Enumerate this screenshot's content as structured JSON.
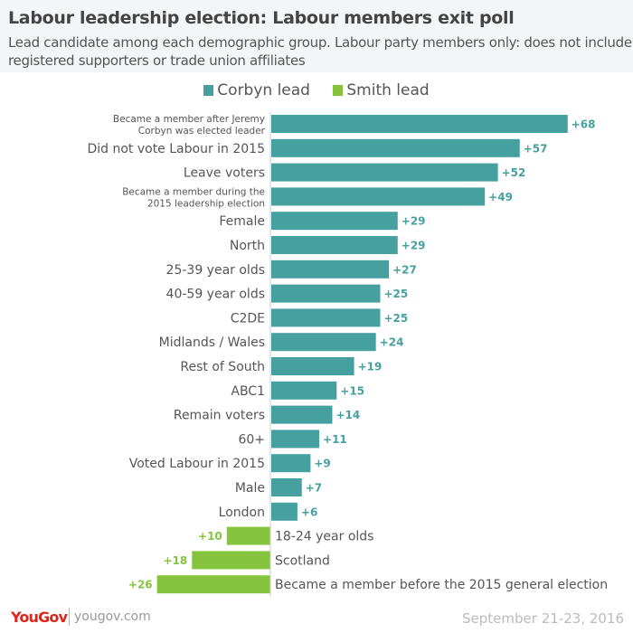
{
  "header": {
    "title": "Labour leadership election: Labour members exit poll",
    "subtitle": "Lead candidate among each demographic group. Labour party members only: does not include registered supporters or trade union affiliates"
  },
  "legend": [
    {
      "label": "Corbyn lead",
      "color": "#47a0a0"
    },
    {
      "label": "Smith lead",
      "color": "#86c440"
    }
  ],
  "chart_data": {
    "type": "bar",
    "orientation": "horizontal-diverging",
    "title": "Labour leadership election: Labour members exit poll",
    "categories": [
      "Became a member after Jeremy Corbyn was elected leader",
      "Did not vote Labour in 2015",
      "Leave voters",
      "Became a member during the 2015 leadership election",
      "Female",
      "North",
      "25-39 year olds",
      "40-59 year olds",
      "C2DE",
      "Midlands / Wales",
      "Rest of South",
      "ABC1",
      "Remain voters",
      "60+",
      "Voted Labour in 2015",
      "Male",
      "London",
      "18-24 year olds",
      "Scotland",
      "Became a member before the 2015 general election"
    ],
    "lead": [
      "Corbyn",
      "Corbyn",
      "Corbyn",
      "Corbyn",
      "Corbyn",
      "Corbyn",
      "Corbyn",
      "Corbyn",
      "Corbyn",
      "Corbyn",
      "Corbyn",
      "Corbyn",
      "Corbyn",
      "Corbyn",
      "Corbyn",
      "Corbyn",
      "Corbyn",
      "Smith",
      "Smith",
      "Smith"
    ],
    "values": [
      68,
      57,
      52,
      49,
      29,
      29,
      27,
      25,
      25,
      24,
      19,
      15,
      14,
      11,
      9,
      7,
      6,
      10,
      18,
      26
    ],
    "value_labels": [
      "+68",
      "+57",
      "+52",
      "+49",
      "+29",
      "+29",
      "+27",
      "+25",
      "+25",
      "+24",
      "+19",
      "+15",
      "+14",
      "+11",
      "+9",
      "+7",
      "+6",
      "+10",
      "+18",
      "+26"
    ],
    "colors": {
      "Corbyn": "#47a0a0",
      "Smith": "#86c440"
    },
    "legend_placement": "top",
    "grid": false
  },
  "footer": {
    "logo": "YouGov",
    "site": "yougov.com",
    "date": "September 21-23, 2016"
  }
}
